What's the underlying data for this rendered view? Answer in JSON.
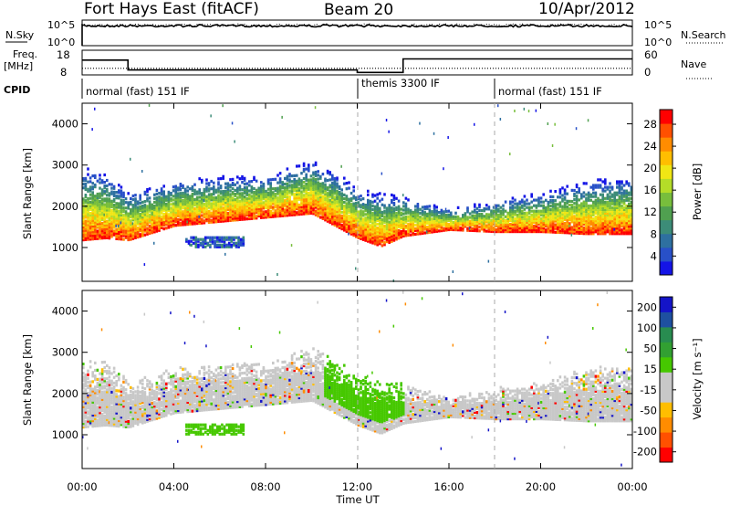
{
  "header": {
    "radar": "Fort Hays East (fitACF)",
    "beam": "Beam 20",
    "date": "10/Apr/2012"
  },
  "status_panels": {
    "nsky_label": "N.Sky",
    "nsky_ticks": [
      "10^5",
      "10^0"
    ],
    "nsearch_label": "N.Search",
    "nsearch_ticks": [
      "10^5",
      "10^0"
    ],
    "freq_label": "Freq.",
    "freq_unit": "[MHz]",
    "freq_ticks": [
      "18",
      "8"
    ],
    "nave_label": "Nave",
    "nave_ticks": [
      "60",
      "0"
    ],
    "cpid_label": "CPID",
    "cpid_segments": [
      {
        "label": "normal (fast) 151 IF",
        "start_hour": 0,
        "end_hour": 12
      },
      {
        "label": "themis 3300 IF",
        "start_hour": 12,
        "end_hour": 18
      },
      {
        "label": "normal (fast) 151 IF",
        "start_hour": 18,
        "end_hour": 24
      }
    ],
    "freq_series": {
      "hours": [
        0,
        2,
        2,
        12,
        12,
        14,
        14,
        24
      ],
      "mhz": [
        14,
        14,
        10,
        10,
        9,
        9,
        14.5,
        14.5
      ]
    },
    "nave_series": {
      "hours": [
        0,
        2,
        2,
        12,
        12,
        14,
        14,
        24
      ],
      "value": [
        16,
        16,
        16,
        16,
        16,
        16,
        16,
        16
      ]
    }
  },
  "chart_data": [
    {
      "type": "heatmap",
      "ylabel": "Slant Range [km]",
      "xlabel": "Time UT",
      "x_ticks": [
        "00:00",
        "04:00",
        "08:00",
        "12:00",
        "16:00",
        "20:00",
        "00:00"
      ],
      "y_ticks": [
        "1000",
        "2000",
        "3000",
        "4000"
      ],
      "xlim_hours": [
        0,
        24
      ],
      "ylim_km": [
        180,
        4500
      ],
      "colorbar": {
        "label": "Power [dB]",
        "ticks": [
          "28",
          "24",
          "20",
          "16",
          "12",
          "8",
          "4"
        ],
        "range": [
          0,
          30
        ],
        "colors": [
          "#1414e6",
          "#2850c8",
          "#2e70a0",
          "#3c8c78",
          "#50a050",
          "#78be3c",
          "#b4dc28",
          "#f0e614",
          "#ffbe00",
          "#ff8c00",
          "#ff5000",
          "#ff0000"
        ]
      },
      "scatter_bands": [
        {
          "hours": [
            0,
            1,
            2,
            4,
            6,
            8,
            10,
            11,
            12,
            13,
            14,
            16,
            18,
            20,
            22,
            24
          ],
          "lower_km": [
            1150,
            1200,
            1150,
            1500,
            1600,
            1700,
            1800,
            1500,
            1200,
            1000,
            1250,
            1400,
            1350,
            1350,
            1300,
            1300
          ],
          "upper_km": [
            2900,
            2800,
            2300,
            2600,
            2700,
            2700,
            3100,
            2800,
            2400,
            2300,
            2200,
            1900,
            2100,
            2300,
            2600,
            2700
          ]
        }
      ]
    },
    {
      "type": "heatmap",
      "ylabel": "Slant Range [km]",
      "xlabel": "Time UT",
      "x_ticks": [
        "00:00",
        "04:00",
        "08:00",
        "12:00",
        "16:00",
        "20:00",
        "00:00"
      ],
      "y_ticks": [
        "1000",
        "2000",
        "3000",
        "4000"
      ],
      "xlim_hours": [
        0,
        24
      ],
      "ylim_km": [
        180,
        4500
      ],
      "colorbar": {
        "label": "Velocity [m s⁻¹]",
        "ticks": [
          "200",
          "100",
          "50",
          "15",
          "-15",
          "-50",
          "-100",
          "-200"
        ],
        "range": [
          -250,
          250
        ],
        "colors": [
          "#ff0000",
          "#ff5000",
          "#ff8c00",
          "#ffbe00",
          "#c8c8c8",
          "#c8c8c8",
          "#46c800",
          "#32a032",
          "#288c50",
          "#1e50a0",
          "#1414c8"
        ]
      }
    }
  ]
}
